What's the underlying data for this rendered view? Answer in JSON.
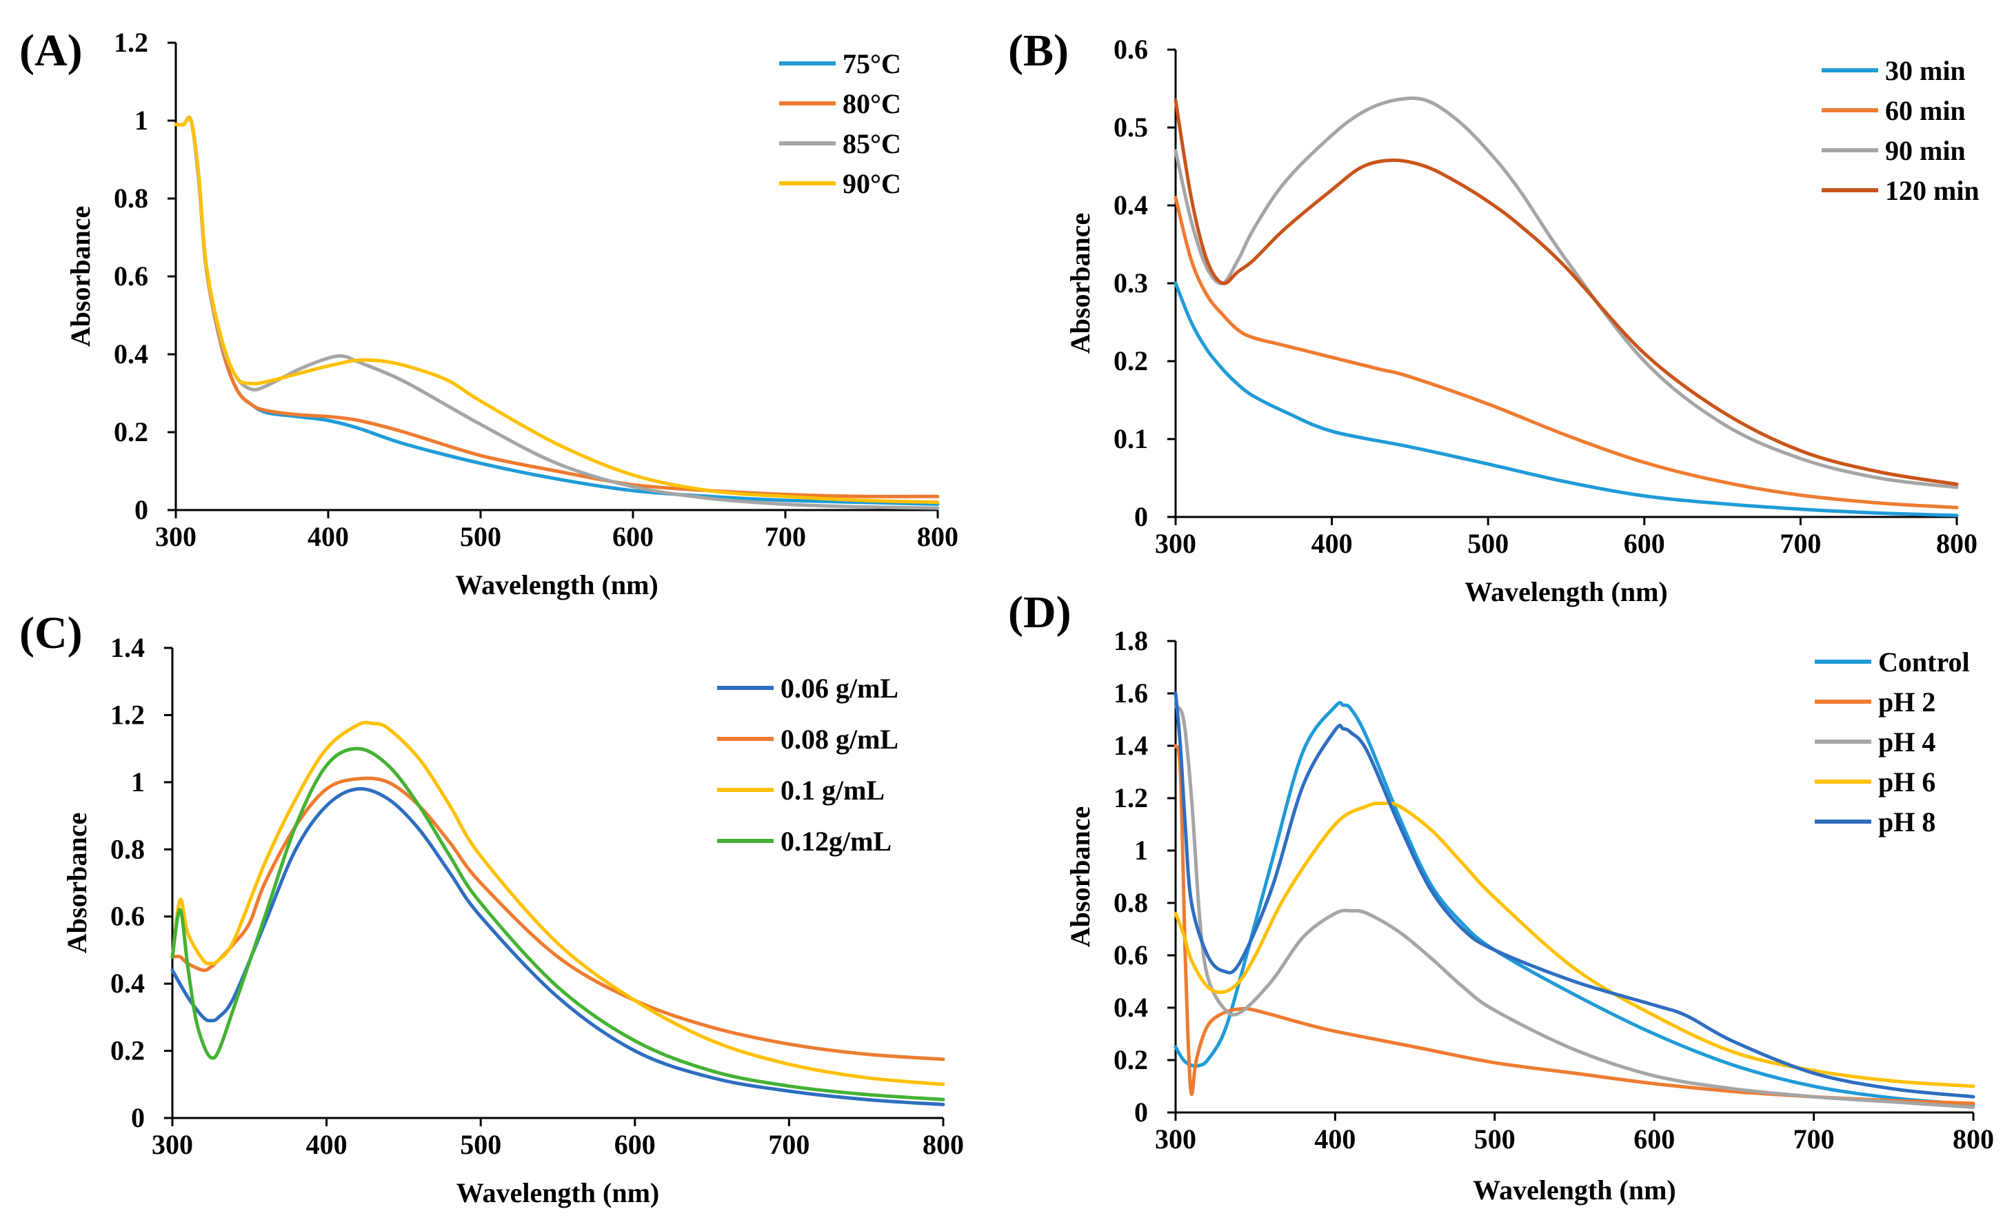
{
  "chart_data": [
    {
      "panel": "(A)",
      "type": "line",
      "xlabel": "Wavelength (nm)",
      "ylabel": "Absorbance",
      "xlim": [
        300,
        800
      ],
      "ylim": [
        0,
        1.2
      ],
      "xticks": [
        "300",
        "400",
        "500",
        "600",
        "700",
        "800"
      ],
      "yticks": [
        "0",
        "0.2",
        "0.4",
        "0.6",
        "0.8",
        "1",
        "1.2"
      ],
      "legend_position": "top-right",
      "series": [
        {
          "name": "75°C",
          "color": "#1f9bd7",
          "x": [
            300,
            305,
            310,
            315,
            320,
            330,
            340,
            350,
            360,
            380,
            400,
            420,
            450,
            500,
            550,
            600,
            650,
            700,
            750,
            800
          ],
          "y": [
            0.99,
            0.99,
            1.0,
            0.85,
            0.62,
            0.42,
            0.31,
            0.27,
            0.25,
            0.24,
            0.23,
            0.21,
            0.17,
            0.12,
            0.08,
            0.05,
            0.035,
            0.025,
            0.02,
            0.015
          ]
        },
        {
          "name": "80°C",
          "color": "#ee7b30",
          "x": [
            300,
            305,
            310,
            315,
            320,
            330,
            340,
            350,
            360,
            380,
            400,
            420,
            450,
            500,
            550,
            600,
            650,
            700,
            750,
            800
          ],
          "y": [
            0.99,
            0.99,
            1.0,
            0.86,
            0.62,
            0.42,
            0.31,
            0.27,
            0.255,
            0.245,
            0.24,
            0.23,
            0.2,
            0.14,
            0.1,
            0.065,
            0.05,
            0.04,
            0.035,
            0.035
          ]
        },
        {
          "name": "85°C",
          "color": "#a5a5a5",
          "x": [
            300,
            305,
            310,
            315,
            320,
            330,
            340,
            350,
            360,
            380,
            400,
            410,
            420,
            450,
            500,
            550,
            600,
            650,
            700,
            750,
            800
          ],
          "y": [
            0.99,
            0.99,
            1.0,
            0.86,
            0.62,
            0.43,
            0.34,
            0.31,
            0.32,
            0.36,
            0.39,
            0.395,
            0.38,
            0.33,
            0.22,
            0.12,
            0.06,
            0.03,
            0.015,
            0.008,
            0.005
          ]
        },
        {
          "name": "90°C",
          "color": "#ffc000",
          "x": [
            300,
            305,
            310,
            315,
            320,
            330,
            340,
            350,
            360,
            380,
            400,
            420,
            440,
            460,
            480,
            500,
            550,
            600,
            650,
            700,
            750,
            800
          ],
          "y": [
            0.99,
            0.99,
            1.0,
            0.86,
            0.63,
            0.44,
            0.34,
            0.325,
            0.33,
            0.35,
            0.37,
            0.385,
            0.38,
            0.36,
            0.33,
            0.28,
            0.17,
            0.09,
            0.05,
            0.035,
            0.025,
            0.02
          ]
        }
      ]
    },
    {
      "panel": "(B)",
      "type": "line",
      "xlabel": "Wavelength (nm)",
      "ylabel": "Absorbance",
      "xlim": [
        300,
        800
      ],
      "ylim": [
        0,
        0.6
      ],
      "xticks": [
        "300",
        "400",
        "500",
        "600",
        "700",
        "800"
      ],
      "yticks": [
        "0",
        "0.1",
        "0.2",
        "0.3",
        "0.4",
        "0.5",
        "0.6"
      ],
      "legend_position": "top-right",
      "series": [
        {
          "name": "30 min",
          "color": "#1f9bd7",
          "x": [
            300,
            310,
            320,
            330,
            340,
            350,
            370,
            400,
            450,
            500,
            550,
            600,
            650,
            700,
            750,
            800
          ],
          "y": [
            0.3,
            0.25,
            0.215,
            0.19,
            0.17,
            0.155,
            0.135,
            0.11,
            0.09,
            0.068,
            0.045,
            0.027,
            0.017,
            0.01,
            0.005,
            0.002
          ]
        },
        {
          "name": "60 min",
          "color": "#ee7b30",
          "x": [
            300,
            310,
            320,
            330,
            340,
            350,
            370,
            400,
            430,
            450,
            500,
            550,
            600,
            650,
            700,
            750,
            800
          ],
          "y": [
            0.41,
            0.33,
            0.285,
            0.26,
            0.24,
            0.23,
            0.22,
            0.205,
            0.19,
            0.18,
            0.145,
            0.105,
            0.07,
            0.045,
            0.028,
            0.018,
            0.012
          ]
        },
        {
          "name": "90 min",
          "color": "#a5a5a5",
          "x": [
            300,
            310,
            320,
            330,
            340,
            350,
            370,
            400,
            420,
            440,
            460,
            480,
            500,
            520,
            550,
            600,
            650,
            700,
            750,
            800
          ],
          "y": [
            0.47,
            0.38,
            0.32,
            0.3,
            0.33,
            0.37,
            0.43,
            0.49,
            0.52,
            0.535,
            0.535,
            0.51,
            0.47,
            0.42,
            0.33,
            0.2,
            0.12,
            0.075,
            0.05,
            0.038
          ]
        },
        {
          "name": "120 min",
          "color": "#c9541a",
          "x": [
            300,
            310,
            320,
            330,
            340,
            350,
            370,
            400,
            420,
            440,
            460,
            480,
            500,
            520,
            550,
            600,
            650,
            700,
            750,
            800
          ],
          "y": [
            0.535,
            0.41,
            0.33,
            0.3,
            0.315,
            0.33,
            0.37,
            0.42,
            0.45,
            0.458,
            0.45,
            0.43,
            0.405,
            0.375,
            0.32,
            0.21,
            0.135,
            0.085,
            0.058,
            0.042
          ]
        }
      ]
    },
    {
      "panel": "(C)",
      "type": "line",
      "xlabel": "Wavelength (nm)",
      "ylabel": "Absorbance",
      "xlim": [
        300,
        800
      ],
      "ylim": [
        0,
        1.4
      ],
      "xticks": [
        "300",
        "400",
        "500",
        "600",
        "700",
        "800"
      ],
      "yticks": [
        "0",
        "0.2",
        "0.4",
        "0.6",
        "0.8",
        "1",
        "1.2",
        "1.4"
      ],
      "legend_position": "top-right",
      "series": [
        {
          "name": "0.06 g/mL",
          "color": "#2e6ec0",
          "x": [
            300,
            310,
            320,
            325,
            330,
            340,
            360,
            380,
            400,
            420,
            440,
            460,
            480,
            500,
            550,
            600,
            650,
            700,
            750,
            800
          ],
          "y": [
            0.44,
            0.36,
            0.3,
            0.29,
            0.3,
            0.36,
            0.58,
            0.8,
            0.93,
            0.98,
            0.95,
            0.86,
            0.73,
            0.6,
            0.36,
            0.2,
            0.12,
            0.08,
            0.055,
            0.04
          ]
        },
        {
          "name": "0.08 g/mL",
          "color": "#ee7b30",
          "x": [
            300,
            305,
            310,
            320,
            325,
            330,
            340,
            350,
            360,
            380,
            400,
            420,
            440,
            460,
            480,
            500,
            550,
            600,
            650,
            700,
            750,
            800
          ],
          "y": [
            0.48,
            0.48,
            0.46,
            0.44,
            0.45,
            0.47,
            0.52,
            0.58,
            0.7,
            0.87,
            0.98,
            1.01,
            1.0,
            0.93,
            0.82,
            0.7,
            0.48,
            0.35,
            0.27,
            0.22,
            0.19,
            0.175
          ]
        },
        {
          "name": "0.1 g/mL",
          "color": "#ffc000",
          "x": [
            300,
            305,
            310,
            320,
            325,
            330,
            340,
            360,
            380,
            400,
            420,
            430,
            440,
            460,
            480,
            500,
            550,
            600,
            650,
            700,
            750,
            800
          ],
          "y": [
            0.48,
            0.65,
            0.55,
            0.47,
            0.46,
            0.47,
            0.53,
            0.76,
            0.95,
            1.1,
            1.17,
            1.175,
            1.16,
            1.07,
            0.93,
            0.78,
            0.52,
            0.35,
            0.23,
            0.16,
            0.12,
            0.1
          ]
        },
        {
          "name": "0.12g/mL",
          "color": "#44b233",
          "x": [
            300,
            305,
            310,
            315,
            320,
            325,
            330,
            340,
            360,
            380,
            400,
            420,
            440,
            460,
            480,
            500,
            550,
            600,
            650,
            700,
            750,
            800
          ],
          "y": [
            0.48,
            0.62,
            0.45,
            0.3,
            0.22,
            0.18,
            0.2,
            0.33,
            0.6,
            0.87,
            1.05,
            1.1,
            1.05,
            0.93,
            0.78,
            0.64,
            0.39,
            0.23,
            0.14,
            0.095,
            0.07,
            0.055
          ]
        }
      ]
    },
    {
      "panel": "(D)",
      "type": "line",
      "xlabel": "Wavelength (nm)",
      "ylabel": "Absorbance",
      "xlim": [
        300,
        800
      ],
      "ylim": [
        0,
        1.8
      ],
      "xticks": [
        "300",
        "400",
        "500",
        "600",
        "700",
        "800"
      ],
      "yticks": [
        "0",
        "0.2",
        "0.4",
        "0.6",
        "0.8",
        "1",
        "1.2",
        "1.4",
        "1.6",
        "1.8"
      ],
      "legend_position": "top-right",
      "series": [
        {
          "name": "Control",
          "color": "#1f9bd7",
          "x": [
            300,
            305,
            310,
            315,
            320,
            330,
            340,
            360,
            380,
            400,
            405,
            410,
            420,
            440,
            460,
            480,
            500,
            550,
            600,
            650,
            700,
            750,
            800
          ],
          "y": [
            0.25,
            0.2,
            0.18,
            0.18,
            0.2,
            0.3,
            0.5,
            0.95,
            1.38,
            1.55,
            1.555,
            1.54,
            1.43,
            1.13,
            0.87,
            0.72,
            0.62,
            0.45,
            0.3,
            0.18,
            0.1,
            0.055,
            0.03
          ]
        },
        {
          "name": "pH 2",
          "color": "#ee7b30",
          "x": [
            300,
            303,
            306,
            308,
            310,
            313,
            320,
            330,
            340,
            350,
            380,
            400,
            450,
            500,
            550,
            600,
            650,
            700,
            750,
            800
          ],
          "y": [
            1.4,
            1.3,
            0.6,
            0.25,
            0.07,
            0.2,
            0.33,
            0.38,
            0.395,
            0.39,
            0.34,
            0.31,
            0.25,
            0.19,
            0.15,
            0.11,
            0.08,
            0.06,
            0.045,
            0.035
          ]
        },
        {
          "name": "pH 4",
          "color": "#a5a5a5",
          "x": [
            300,
            305,
            310,
            315,
            320,
            330,
            340,
            360,
            380,
            400,
            410,
            420,
            440,
            460,
            480,
            500,
            550,
            600,
            650,
            700,
            750,
            800
          ],
          "y": [
            1.55,
            1.5,
            1.2,
            0.75,
            0.52,
            0.4,
            0.38,
            0.5,
            0.67,
            0.76,
            0.77,
            0.76,
            0.69,
            0.59,
            0.48,
            0.39,
            0.24,
            0.14,
            0.09,
            0.06,
            0.04,
            0.02
          ]
        },
        {
          "name": "pH 6",
          "color": "#ffc000",
          "x": [
            300,
            305,
            310,
            320,
            330,
            340,
            350,
            370,
            400,
            420,
            430,
            440,
            460,
            480,
            500,
            550,
            600,
            650,
            700,
            750,
            800
          ],
          "y": [
            0.76,
            0.68,
            0.58,
            0.48,
            0.46,
            0.5,
            0.6,
            0.84,
            1.1,
            1.17,
            1.18,
            1.17,
            1.08,
            0.95,
            0.82,
            0.55,
            0.37,
            0.23,
            0.16,
            0.12,
            0.1
          ]
        },
        {
          "name": "pH 8",
          "color": "#2e6ec0",
          "x": [
            300,
            303,
            306,
            310,
            320,
            330,
            340,
            360,
            380,
            400,
            405,
            410,
            420,
            440,
            460,
            480,
            500,
            550,
            600,
            620,
            650,
            700,
            750,
            800
          ],
          "y": [
            1.6,
            1.4,
            1.1,
            0.8,
            0.6,
            0.54,
            0.57,
            0.85,
            1.25,
            1.46,
            1.465,
            1.45,
            1.38,
            1.1,
            0.85,
            0.7,
            0.62,
            0.5,
            0.41,
            0.37,
            0.27,
            0.15,
            0.09,
            0.06
          ]
        }
      ]
    }
  ]
}
